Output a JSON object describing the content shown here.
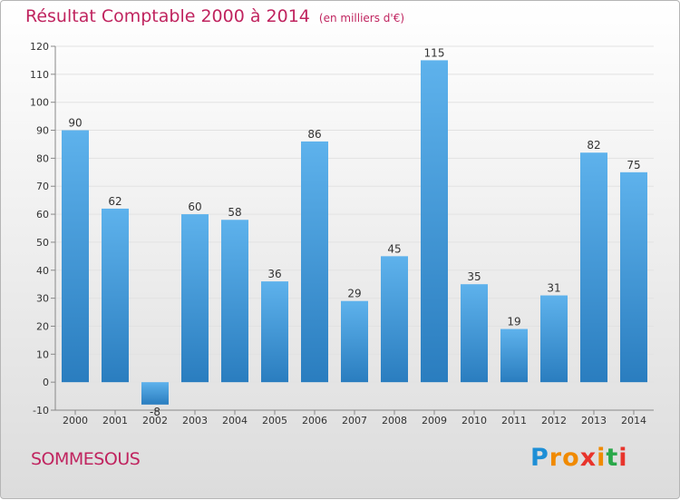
{
  "header": {
    "title": "Résultat Comptable 2000 à 2014",
    "unit": "(en milliers d'€)"
  },
  "commune": "SOMMESOUS",
  "logo": {
    "text": "Proxiti",
    "letter_colors": [
      "#1e8fd6",
      "#f08a00",
      "#f08a00",
      "#e8342c",
      "#f08a00",
      "#2aa84a",
      "#e8342c"
    ]
  },
  "colors": {
    "title": "#c0245f",
    "bar_light": "#5eb2ec",
    "bar_dark": "#2a7dbf",
    "grid": "#e2e2e2"
  },
  "chart_data": {
    "type": "bar",
    "title": "Résultat Comptable 2000 à 2014",
    "ylabel": "",
    "xlabel": "",
    "categories": [
      "2000",
      "2001",
      "2002",
      "2003",
      "2004",
      "2005",
      "2006",
      "2007",
      "2008",
      "2009",
      "2010",
      "2011",
      "2012",
      "2013",
      "2014"
    ],
    "values": [
      90,
      62,
      -8,
      60,
      58,
      36,
      86,
      29,
      45,
      115,
      35,
      19,
      31,
      82,
      75
    ],
    "ylim": [
      -10,
      120
    ],
    "yticks": [
      -10,
      0,
      10,
      20,
      30,
      40,
      50,
      60,
      70,
      80,
      90,
      100,
      110,
      120
    ],
    "grid": true,
    "legend": "none"
  }
}
